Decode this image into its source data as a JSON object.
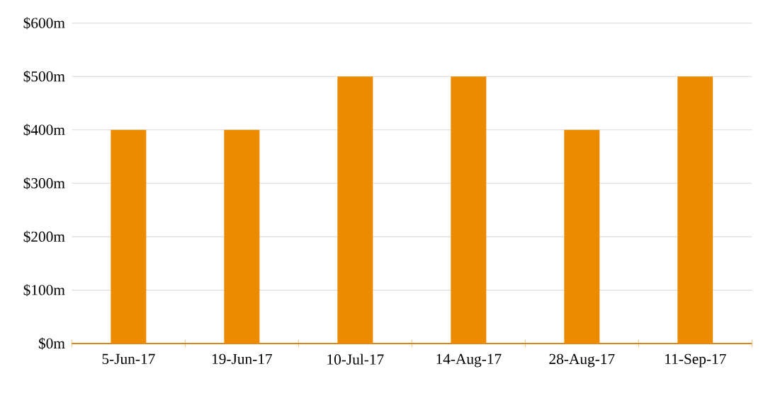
{
  "chart_data": {
    "type": "bar",
    "categories": [
      "5-Jun-17",
      "19-Jun-17",
      "10-Jul-17",
      "14-Aug-17",
      "28-Aug-17",
      "11-Sep-17"
    ],
    "values": [
      400,
      400,
      500,
      500,
      400,
      500
    ],
    "color": "#ed8b00",
    "ylim": [
      0,
      600
    ],
    "yticks": [
      {
        "value": 0,
        "label": "$0m"
      },
      {
        "value": 100,
        "label": "$100m"
      },
      {
        "value": 200,
        "label": "$200m"
      },
      {
        "value": 300,
        "label": "$300m"
      },
      {
        "value": 400,
        "label": "$400m"
      },
      {
        "value": 500,
        "label": "$500m"
      },
      {
        "value": 600,
        "label": "$600m"
      }
    ],
    "grid": "y"
  }
}
